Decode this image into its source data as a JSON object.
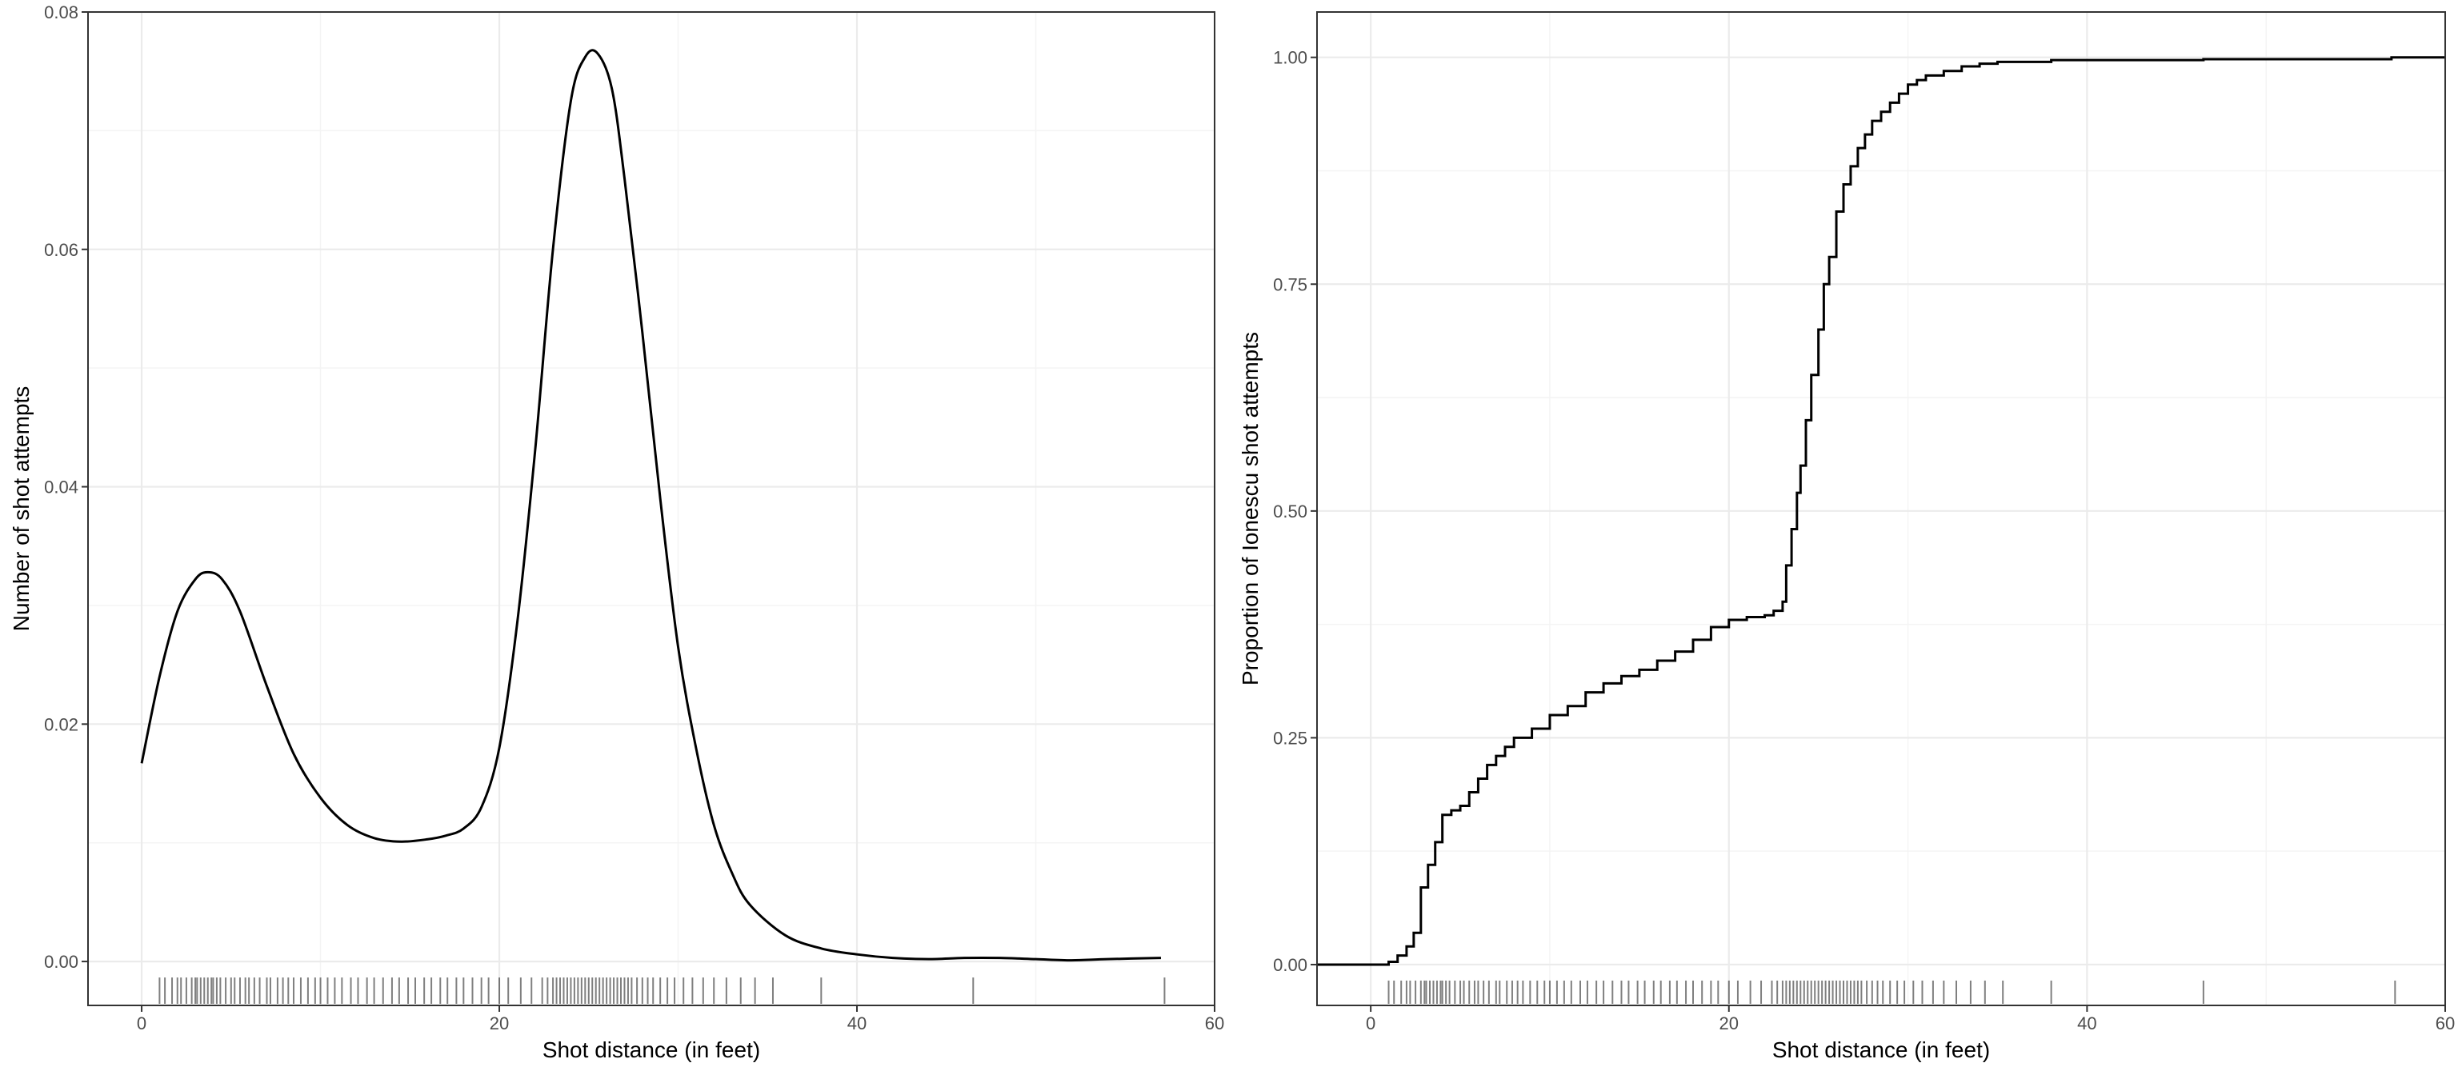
{
  "chart_data": [
    {
      "type": "area",
      "title": "",
      "xlabel": "Shot distance (in feet)",
      "ylabel": "Number of shot attempts",
      "xlim": [
        -3,
        60
      ],
      "ylim": [
        -0.0037,
        0.08
      ],
      "x_ticks": [
        0,
        20,
        40,
        60
      ],
      "x_tick_labels": [
        "0",
        "20",
        "40",
        "60"
      ],
      "y_ticks": [
        0,
        0.02,
        0.04,
        0.06,
        0.08
      ],
      "y_tick_labels": [
        "0.00",
        "0.02",
        "0.04",
        "0.06",
        "0.08"
      ],
      "grid": true,
      "series": [
        {
          "x": [
            0,
            1,
            2,
            3,
            3.7,
            4.5,
            5.5,
            7,
            8.5,
            10,
            11.5,
            13,
            14.5,
            16,
            17,
            18,
            19,
            20,
            21,
            22,
            23,
            24,
            24.8,
            25.5,
            26.3,
            27,
            28,
            29,
            30,
            31,
            32,
            33,
            34,
            36,
            38,
            40,
            42,
            44,
            46,
            48,
            50,
            52,
            54,
            57
          ],
          "y": [
            0.0167,
            0.024,
            0.0295,
            0.0322,
            0.0328,
            0.0322,
            0.0295,
            0.0232,
            0.0175,
            0.0138,
            0.0115,
            0.0104,
            0.0101,
            0.0103,
            0.0106,
            0.0112,
            0.013,
            0.018,
            0.0285,
            0.043,
            0.06,
            0.0725,
            0.0762,
            0.0765,
            0.0735,
            0.066,
            0.053,
            0.039,
            0.0265,
            0.018,
            0.0115,
            0.0075,
            0.0048,
            0.0022,
            0.0011,
            0.0006,
            0.0003,
            0.0002,
            0.0003,
            0.0003,
            0.0002,
            0.0001,
            0.0002,
            0.0003
          ]
        }
      ]
    },
    {
      "type": "line",
      "title": "",
      "xlabel": "Shot distance (in feet)",
      "ylabel": "Proportion of Ionescu shot attempts",
      "xlim": [
        -3,
        60
      ],
      "ylim": [
        -0.045,
        1.05
      ],
      "x_ticks": [
        0,
        20,
        40,
        60
      ],
      "x_tick_labels": [
        "0",
        "20",
        "40",
        "60"
      ],
      "y_ticks": [
        0,
        0.25,
        0.5,
        0.75,
        1.0
      ],
      "y_tick_labels": [
        "0.00",
        "0.25",
        "0.50",
        "0.75",
        "1.00"
      ],
      "grid": true,
      "step": true,
      "series": [
        {
          "x": [
            -3,
            0,
            1,
            1.5,
            2,
            2.4,
            2.8,
            3.2,
            3.6,
            4,
            4.5,
            5,
            5.5,
            6,
            6.5,
            7,
            7.5,
            8,
            9,
            10,
            11,
            12,
            13,
            14,
            15,
            16,
            17,
            18,
            19,
            20,
            21,
            22,
            22.5,
            23,
            23.2,
            23.5,
            23.8,
            24,
            24.3,
            24.6,
            25,
            25.3,
            25.6,
            26,
            26.4,
            26.8,
            27.2,
            27.6,
            28,
            28.5,
            29,
            29.5,
            30,
            30.5,
            31,
            32,
            33,
            34,
            35,
            38,
            46.5,
            57,
            60
          ],
          "y": [
            0,
            0,
            0.003,
            0.01,
            0.02,
            0.035,
            0.085,
            0.11,
            0.135,
            0.165,
            0.17,
            0.175,
            0.19,
            0.205,
            0.22,
            0.23,
            0.24,
            0.25,
            0.26,
            0.275,
            0.285,
            0.3,
            0.31,
            0.318,
            0.325,
            0.335,
            0.345,
            0.358,
            0.372,
            0.38,
            0.383,
            0.385,
            0.39,
            0.4,
            0.44,
            0.48,
            0.52,
            0.55,
            0.6,
            0.65,
            0.7,
            0.75,
            0.78,
            0.83,
            0.86,
            0.88,
            0.9,
            0.915,
            0.93,
            0.94,
            0.95,
            0.96,
            0.97,
            0.975,
            0.98,
            0.985,
            0.99,
            0.993,
            0.995,
            0.997,
            0.998,
            1.0,
            1.0
          ]
        }
      ]
    }
  ],
  "rug": {
    "x": [
      1.0,
      1.3,
      1.7,
      2.0,
      2.2,
      2.5,
      2.8,
      3.0,
      3.1,
      3.3,
      3.5,
      3.7,
      3.9,
      4.0,
      4.2,
      4.4,
      4.7,
      5.0,
      5.2,
      5.5,
      5.8,
      6.0,
      6.3,
      6.6,
      7.0,
      7.2,
      7.6,
      7.9,
      8.2,
      8.5,
      8.9,
      9.3,
      9.7,
      10.0,
      10.4,
      10.8,
      11.2,
      11.7,
      12.1,
      12.6,
      13.0,
      13.5,
      14.0,
      14.4,
      14.9,
      15.3,
      15.8,
      16.2,
      16.7,
      17.1,
      17.6,
      18.0,
      18.5,
      19.0,
      19.4,
      20.0,
      20.5,
      21.2,
      21.8,
      22.4,
      22.7,
      23.0,
      23.2,
      23.4,
      23.6,
      23.8,
      24.0,
      24.2,
      24.4,
      24.6,
      24.8,
      25.0,
      25.2,
      25.4,
      25.6,
      25.8,
      26.0,
      26.2,
      26.4,
      26.6,
      26.8,
      27.0,
      27.2,
      27.4,
      27.7,
      28.0,
      28.3,
      28.6,
      29.0,
      29.4,
      29.8,
      30.3,
      30.8,
      31.4,
      32.0,
      32.7,
      33.5,
      34.3,
      35.3,
      38.0,
      46.5,
      57.2
    ]
  },
  "colors": {
    "background": "#ffffff",
    "panel_border": "#333333",
    "grid_major": "#ebebeb",
    "grid_minor": "#f4f4f4",
    "line": "#000000",
    "rug": "#000000",
    "tick_label": "#4d4d4d"
  }
}
